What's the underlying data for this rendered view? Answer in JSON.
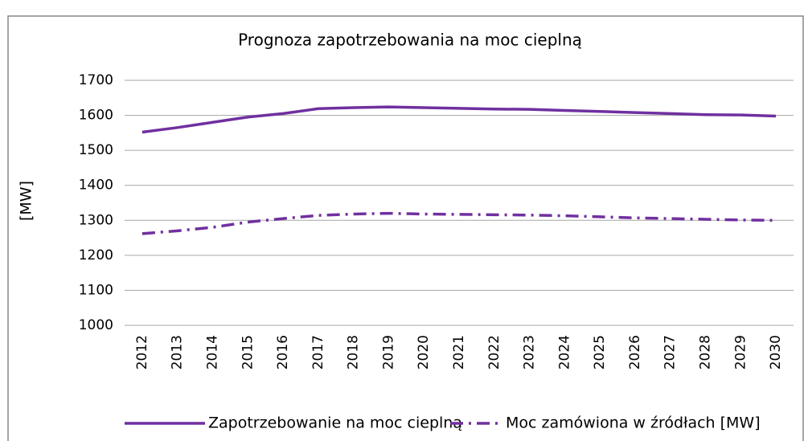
{
  "chart_data": {
    "type": "line",
    "title": "Prognoza zapotrzebowania na moc cieplną",
    "y_label": "[MW]",
    "categories": [
      "2012",
      "2013",
      "2014",
      "2015",
      "2016",
      "2017",
      "2018",
      "2019",
      "2020",
      "2021",
      "2022",
      "2023",
      "2024",
      "2025",
      "2026",
      "2027",
      "2028",
      "2029",
      "2030"
    ],
    "series": [
      {
        "name": "Zapotrzebowanie na moc cieplną",
        "color": "#7030a0",
        "dash": "solid",
        "values": [
          1552,
          1565,
          1580,
          1595,
          1605,
          1619,
          1622,
          1624,
          1622,
          1620,
          1618,
          1617,
          1614,
          1611,
          1608,
          1605,
          1602,
          1601,
          1598
        ]
      },
      {
        "name": "Moc zamówiona w źródłach [MW]",
        "color": "#7030a0",
        "dash": "dashdot",
        "values": [
          1262,
          1270,
          1280,
          1295,
          1305,
          1314,
          1318,
          1320,
          1318,
          1317,
          1316,
          1315,
          1313,
          1310,
          1307,
          1305,
          1303,
          1301,
          1300
        ]
      }
    ],
    "ylim": [
      1000,
      1700
    ],
    "yticks": [
      1000,
      1100,
      1200,
      1300,
      1400,
      1500,
      1600,
      1700
    ],
    "grid": true,
    "legend": "bottom"
  }
}
